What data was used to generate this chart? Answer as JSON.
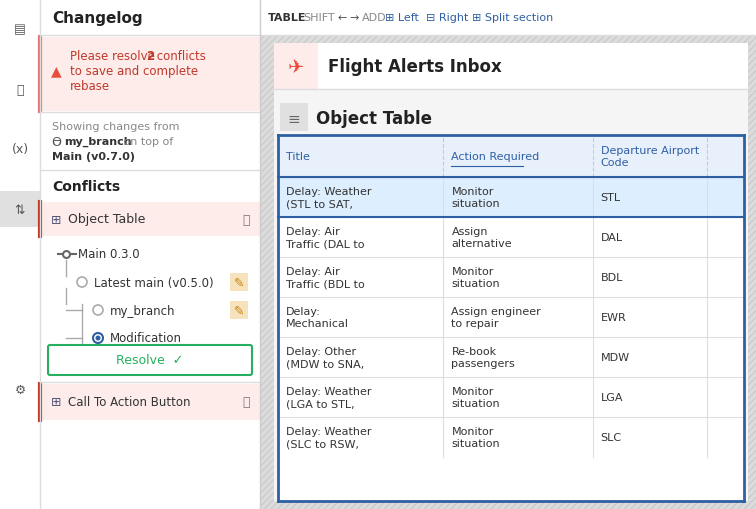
{
  "bg_color": "#e8e8e8",
  "panel_title": "Changelog",
  "alert_bg": "#fdecea",
  "alert_border": "#e57373",
  "alert_color": "#c0392b",
  "showing_color": "#888888",
  "conflicts_title": "Conflicts",
  "conflict_item1": "Object Table",
  "conflict_item1_bg": "#fdecea",
  "conflict_item2": "Call To Action Button",
  "conflict_item2_bg": "#fdecea",
  "resolve_btn_color": "#27ae60",
  "page_header_text": "Flight Alerts Inbox",
  "section_title": "Object Table",
  "table_border_color": "#2e5fa3",
  "table_header_bg": "#e8f0fb",
  "table_first_row_bg": "#ddeeff",
  "table_headers": [
    "Title",
    "Action Required",
    "Departure Airport\nCode"
  ],
  "table_header_underline": [
    false,
    true,
    false
  ],
  "table_rows": [
    [
      "Delay: Weather\n(STL to SAT,",
      "Monitor\nsituation",
      "STL"
    ],
    [
      "Delay: Air\nTraffic (DAL to",
      "Assign\nalternative",
      "DAL"
    ],
    [
      "Delay: Air\nTraffic (BDL to",
      "Monitor\nsituation",
      "BDL"
    ],
    [
      "Delay:\nMechanical",
      "Assign engineer\nto repair",
      "EWR"
    ],
    [
      "Delay: Other\n(MDW to SNA,",
      "Re-book\npassengers",
      "MDW"
    ],
    [
      "Delay: Weather\n(LGA to STL,",
      "Monitor\nsituation",
      "LGA"
    ],
    [
      "Delay: Weather\n(SLC to RSW,",
      "Monitor\nsituation",
      "SLC"
    ]
  ],
  "table_text_color": "#333333",
  "table_header_color": "#2e5fa3"
}
